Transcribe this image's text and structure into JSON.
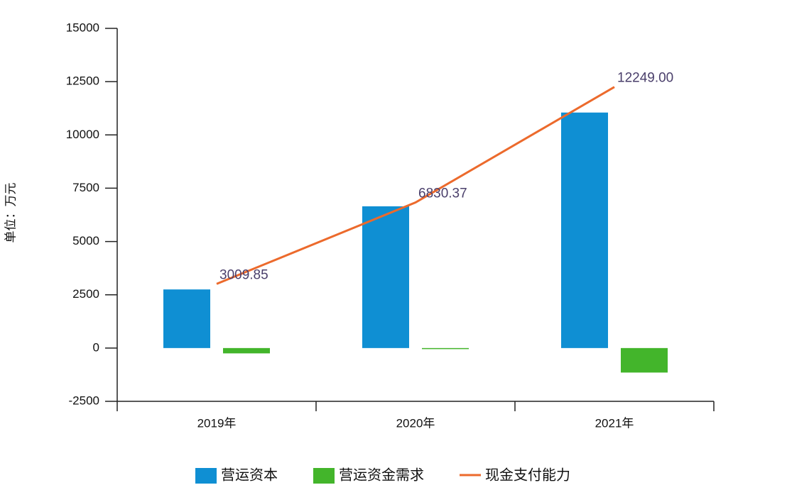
{
  "chart_data": {
    "type": "bar",
    "y_label": "单位：万元",
    "categories": [
      "2019年",
      "2020年",
      "2021年"
    ],
    "series": [
      {
        "name": "营运资本",
        "color": "#0f8fd3",
        "type": "bar",
        "values": [
          2750,
          6650,
          11050
        ]
      },
      {
        "name": "营运资金需求",
        "color": "#43b52b",
        "type": "bar",
        "values": [
          -250,
          -50,
          -1150
        ]
      },
      {
        "name": "现金支付能力",
        "color": "#ec6a2c",
        "type": "line",
        "values": [
          3009.85,
          6830.37,
          12249
        ],
        "value_labels": [
          "3009.85",
          "6830.37",
          "12249.00"
        ]
      }
    ],
    "ylim": [
      -2500,
      15000
    ],
    "yticks": [
      -2500,
      0,
      2500,
      5000,
      7500,
      10000,
      12500,
      15000
    ]
  }
}
